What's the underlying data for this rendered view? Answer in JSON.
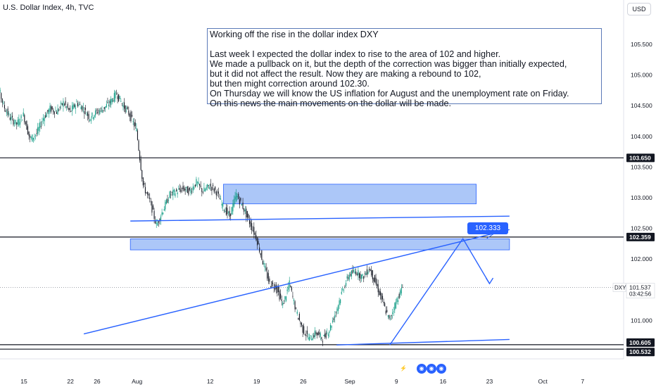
{
  "header": {
    "title": "U.S. Dollar Index, 4h, TVC",
    "currency": "USD"
  },
  "note": {
    "lines": [
      "Working off the rise in the dollar index DXY",
      "",
      "Last week I expected the dollar index to rise to the area of 102 and higher.",
      "We made a pullback on it, but the depth of the correction was bigger than initially expected,",
      "but it did not affect the result. Now they are making a rebound to 102,",
      "but then might correction  around 102.30.",
      "On Thursday we will know the US inflation for August and the unemployment rate on Friday.",
      "On this news the main movements on the dollar will be made."
    ]
  },
  "marker_label": "102.333",
  "chart_data": {
    "type": "candlestick",
    "symbol": "DXY",
    "price_ticks": [
      "105.500",
      "105.000",
      "104.500",
      "104.000",
      "103.500",
      "103.000",
      "102.500",
      "102.000",
      "101.000"
    ],
    "ylim": [
      100.45,
      105.85
    ],
    "x_ticks": [
      "15",
      "22",
      "26",
      "Aug",
      "12",
      "19",
      "26",
      "Sep",
      "9",
      "16",
      "23",
      "Oct",
      "7"
    ],
    "last_price": {
      "label": "DXY",
      "value": "101.537",
      "countdown": "03:42:56"
    },
    "horizontal_levels": [
      {
        "value": 103.65,
        "label": "103.650"
      },
      {
        "value": 102.359,
        "label": "102.359"
      },
      {
        "value": 100.605,
        "label": "100.605"
      },
      {
        "value": 100.532,
        "label": "100.532"
      }
    ],
    "zones": [
      {
        "from": 102.9,
        "to": 103.22,
        "start": "Aug 14",
        "end": "Sep 21"
      },
      {
        "from": 102.15,
        "to": 102.33,
        "start": "Jul 31",
        "end": "Sep 26"
      }
    ],
    "trendlines": [
      {
        "from": {
          "date": "Jul 24",
          "value": 100.78
        },
        "to": {
          "date": "Sep 26",
          "value": 102.48
        }
      },
      {
        "from": {
          "date": "Jul 31",
          "value": 102.62
        },
        "to": {
          "date": "Sep 26",
          "value": 102.7
        }
      },
      {
        "from": {
          "date": "Aug 31",
          "value": 100.6
        },
        "to": {
          "date": "Sep 26",
          "value": 100.69
        }
      }
    ],
    "projection": [
      {
        "date": "Sep 8",
        "value": 100.6
      },
      {
        "date": "Sep 19",
        "value": 102.333
      },
      {
        "date": "Sep 23",
        "value": 101.6
      }
    ],
    "series_path": [
      [
        "Jul 10",
        105.05
      ],
      [
        "Jul 11",
        104.9
      ],
      [
        "Jul 12",
        104.5
      ],
      [
        "Jul 13",
        104.3
      ],
      [
        "Jul 14",
        104.2
      ],
      [
        "Jul 15",
        104.35
      ],
      [
        "Jul 16",
        103.95
      ],
      [
        "Jul 17",
        104.05
      ],
      [
        "Jul 18",
        104.3
      ],
      [
        "Jul 19",
        104.45
      ],
      [
        "Jul 20",
        104.4
      ],
      [
        "Jul 21",
        104.55
      ],
      [
        "Jul 22",
        104.4
      ],
      [
        "Jul 23",
        104.55
      ],
      [
        "Jul 24",
        104.45
      ],
      [
        "Jul 25",
        104.3
      ],
      [
        "Jul 26",
        104.4
      ],
      [
        "Jul 27",
        104.45
      ],
      [
        "Jul 28",
        104.55
      ],
      [
        "Jul 29",
        104.7
      ],
      [
        "Jul 30",
        104.5
      ],
      [
        "Jul 31",
        104.35
      ],
      [
        "Aug 1",
        104.1
      ],
      [
        "Aug 2",
        103.2
      ],
      [
        "Aug 3",
        102.95
      ],
      [
        "Aug 4",
        102.55
      ],
      [
        "Aug 5",
        102.8
      ],
      [
        "Aug 6",
        103.05
      ],
      [
        "Aug 7",
        103.1
      ],
      [
        "Aug 8",
        103.15
      ],
      [
        "Aug 9",
        103.1
      ],
      [
        "Aug 10",
        103.25
      ],
      [
        "Aug 11",
        103.1
      ],
      [
        "Aug 12",
        103.2
      ],
      [
        "Aug 13",
        103.1
      ],
      [
        "Aug 14",
        102.85
      ],
      [
        "Aug 15",
        102.7
      ],
      [
        "Aug 16",
        103.05
      ],
      [
        "Aug 17",
        102.85
      ],
      [
        "Aug 18",
        102.6
      ],
      [
        "Aug 19",
        102.35
      ],
      [
        "Aug 20",
        101.95
      ],
      [
        "Aug 21",
        101.6
      ],
      [
        "Aug 22",
        101.55
      ],
      [
        "Aug 23",
        101.25
      ],
      [
        "Aug 24",
        101.6
      ],
      [
        "Aug 25",
        101.15
      ],
      [
        "Aug 26",
        100.85
      ],
      [
        "Aug 27",
        100.7
      ],
      [
        "Aug 28",
        100.8
      ],
      [
        "Aug 29",
        100.7
      ],
      [
        "Aug 30",
        100.85
      ],
      [
        "Aug 31",
        101.15
      ],
      [
        "Sep 1",
        101.5
      ],
      [
        "Sep 2",
        101.75
      ],
      [
        "Sep 3",
        101.8
      ],
      [
        "Sep 4",
        101.7
      ],
      [
        "Sep 5",
        101.85
      ],
      [
        "Sep 6",
        101.6
      ],
      [
        "Sep 7",
        101.3
      ],
      [
        "Sep 8",
        101.0
      ],
      [
        "Sep 9",
        101.3
      ],
      [
        "Sep 10",
        101.537
      ]
    ]
  },
  "colors": {
    "up": "#089981",
    "down": "#131722",
    "line": "#2962ff",
    "zone_fill": "#90b4f5",
    "zone_stroke": "#2962ff",
    "level": "#131722",
    "axis_text": "#131722",
    "grid_dot": "#9598a1"
  }
}
